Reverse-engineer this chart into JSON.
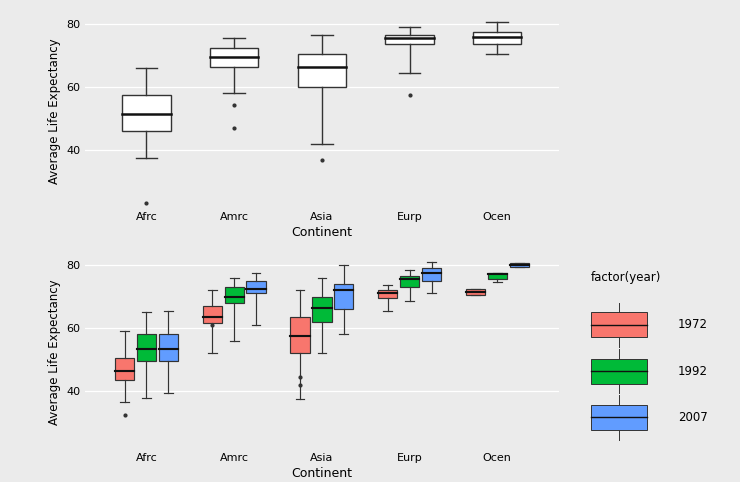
{
  "continents": [
    "Afrc",
    "Amrc",
    "Asia",
    "Eurp",
    "Ocen"
  ],
  "background_color": "#EBEBEB",
  "grid_color": "#FFFFFF",
  "top_panel": {
    "ylabel": "Average Life Expectancy",
    "xlabel": "Continent",
    "ylim": [
      22,
      83
    ],
    "yticks": [
      40,
      60,
      80
    ],
    "boxes": {
      "Afrc": {
        "q1": 46.0,
        "median": 51.5,
        "q3": 57.5,
        "whislo": 37.5,
        "whishi": 66.0,
        "fliers": [
          23.5
        ]
      },
      "Amrc": {
        "q1": 66.5,
        "median": 69.5,
        "q3": 72.5,
        "whislo": 58.0,
        "whishi": 75.5,
        "fliers": [
          47.0,
          54.5
        ]
      },
      "Asia": {
        "q1": 60.0,
        "median": 66.5,
        "q3": 70.5,
        "whislo": 42.0,
        "whishi": 76.5,
        "fliers": [
          37.0
        ]
      },
      "Eurp": {
        "q1": 73.5,
        "median": 75.5,
        "q3": 76.5,
        "whislo": 64.5,
        "whishi": 79.0,
        "fliers": [
          57.5
        ]
      },
      "Ocen": {
        "q1": 73.5,
        "median": 76.0,
        "q3": 77.5,
        "whislo": 70.5,
        "whishi": 80.5,
        "fliers": []
      }
    }
  },
  "bottom_panel": {
    "ylabel": "Average Life Expectancy",
    "xlabel": "Continent",
    "ylim": [
      22,
      83
    ],
    "yticks": [
      40,
      60,
      80
    ],
    "years": [
      "1972",
      "1992",
      "2007"
    ],
    "year_colors": {
      "1972": "#F8766D",
      "1992": "#00BA38",
      "2007": "#619CFF"
    },
    "boxes": {
      "Afrc": {
        "1972": {
          "q1": 43.5,
          "median": 46.5,
          "q3": 50.5,
          "whislo": 36.5,
          "whishi": 59.0,
          "fliers": [
            32.5
          ]
        },
        "1992": {
          "q1": 49.5,
          "median": 53.5,
          "q3": 58.0,
          "whislo": 38.0,
          "whishi": 65.0,
          "fliers": []
        },
        "2007": {
          "q1": 49.5,
          "median": 53.5,
          "q3": 58.0,
          "whislo": 39.5,
          "whishi": 65.5,
          "fliers": []
        }
      },
      "Amrc": {
        "1972": {
          "q1": 61.5,
          "median": 63.5,
          "q3": 67.0,
          "whislo": 52.0,
          "whishi": 72.0,
          "fliers": [
            61.0
          ]
        },
        "1992": {
          "q1": 68.0,
          "median": 70.0,
          "q3": 73.0,
          "whislo": 56.0,
          "whishi": 76.0,
          "fliers": []
        },
        "2007": {
          "q1": 71.0,
          "median": 72.5,
          "q3": 75.0,
          "whislo": 61.0,
          "whishi": 77.5,
          "fliers": []
        }
      },
      "Asia": {
        "1972": {
          "q1": 52.0,
          "median": 57.5,
          "q3": 63.5,
          "whislo": 37.5,
          "whishi": 72.0,
          "fliers": [
            42.0,
            44.5
          ]
        },
        "1992": {
          "q1": 62.0,
          "median": 66.5,
          "q3": 70.0,
          "whislo": 52.0,
          "whishi": 76.0,
          "fliers": []
        },
        "2007": {
          "q1": 66.0,
          "median": 72.0,
          "q3": 74.0,
          "whislo": 58.0,
          "whishi": 80.0,
          "fliers": []
        }
      },
      "Eurp": {
        "1972": {
          "q1": 69.5,
          "median": 71.0,
          "q3": 72.0,
          "whislo": 65.5,
          "whishi": 73.5,
          "fliers": []
        },
        "1992": {
          "q1": 73.0,
          "median": 75.5,
          "q3": 76.5,
          "whislo": 68.5,
          "whishi": 78.5,
          "fliers": []
        },
        "2007": {
          "q1": 75.0,
          "median": 77.5,
          "q3": 79.0,
          "whislo": 71.0,
          "whishi": 81.0,
          "fliers": []
        }
      },
      "Ocen": {
        "1972": {
          "q1": 70.5,
          "median": 71.5,
          "q3": 72.5,
          "whislo": 70.5,
          "whishi": 72.5,
          "fliers": []
        },
        "1992": {
          "q1": 75.5,
          "median": 77.0,
          "q3": 77.5,
          "whislo": 74.5,
          "whishi": 77.5,
          "fliers": []
        },
        "2007": {
          "q1": 79.5,
          "median": 80.0,
          "q3": 80.5,
          "whislo": 79.5,
          "whishi": 80.5,
          "fliers": []
        }
      }
    }
  },
  "legend": {
    "title": "factor(year)",
    "items": [
      {
        "label": "1972",
        "color": "#F8766D"
      },
      {
        "label": "1992",
        "color": "#00BA38"
      },
      {
        "label": "2007",
        "color": "#619CFF"
      }
    ]
  }
}
